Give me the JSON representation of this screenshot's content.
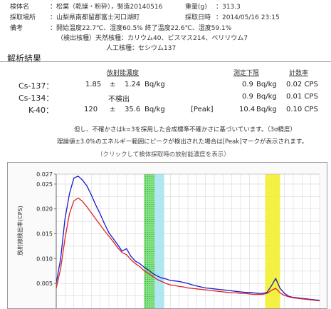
{
  "header": {
    "sample_label": "検体名",
    "sample_value": "：松葉（乾燥・粉砕），製造20140516",
    "weight_label": "重量(g)",
    "weight_value": "：313.3",
    "place_label": "採取場所",
    "place_value": "：山梨県南都留郡富士河口湖町",
    "date_label": "採取日時",
    "date_value": "：2014/05/16 23:15",
    "remarks_label": "備考",
    "remarks_line1": "：開始温度22.7℃、湿度60.5%  終了温度22.6℃、湿度59.1%",
    "remarks_line2": "（検出核種）天然核種：カリウム40、ビスマス214、ベリリウム7",
    "remarks_line3": "人工核種：セシウム137"
  },
  "results": {
    "section_title": "解析結果",
    "col_concentration": "放射能濃度",
    "col_detection_limit": "測定下限",
    "col_count_rate": "計数率",
    "rows": [
      {
        "nuclide": "Cs-137：",
        "value": "1.85",
        "pm": "±",
        "error": "1.24",
        "unit": "Bq/kg",
        "peak": "",
        "limit": "0.9",
        "limit_unit": "Bq/kg",
        "rate": "0.02 CPS"
      },
      {
        "nuclide": "Cs-134：",
        "value": "不検出",
        "pm": "",
        "error": "",
        "unit": "",
        "peak": "",
        "limit": "0.9",
        "limit_unit": "Bq/kg",
        "rate": "0.01 CPS"
      },
      {
        "nuclide": "K-40：",
        "value": "120",
        "pm": "±",
        "error": "35.6",
        "unit": "Bq/kg",
        "peak": "[Peak]",
        "limit": "10.4",
        "limit_unit": "Bq/kg",
        "rate": "0.10 CPS"
      }
    ],
    "note1": "但し、不確かさはk=3を採用した合成標準不確かさに基づいています。（3σ精度）",
    "note2": "理論値±3.0%のエネルギー範囲にピークが検出された場合は[Peak]マークが表示されます。",
    "note3": "（クリックして検体採取時の放射能濃度を表示）"
  },
  "chart_data": {
    "type": "line",
    "title": "",
    "xlabel": "",
    "ylabel": "放射線検出率(CPS)",
    "ylim": [
      0,
      0.027
    ],
    "yticks": [
      "0.027",
      "0.025",
      "0.020",
      "0.015",
      "0.010",
      "0.005"
    ],
    "grid": true,
    "x": [
      0,
      5,
      10,
      15,
      20,
      25,
      30,
      35,
      40,
      45,
      50,
      55,
      60,
      65,
      70,
      75,
      80,
      85,
      90,
      95,
      100,
      105,
      110,
      115,
      120,
      125,
      130,
      135,
      140,
      145,
      150,
      155,
      160,
      165,
      170,
      175,
      180,
      185,
      190,
      195,
      200,
      205,
      210,
      215,
      220,
      225,
      230,
      235,
      240,
      245,
      250,
      255,
      260,
      265,
      270,
      275,
      280,
      285,
      290,
      295,
      300
    ],
    "series": [
      {
        "color": "#1a1acc",
        "values": [
          0.005,
          0.01,
          0.018,
          0.023,
          0.0262,
          0.0266,
          0.0258,
          0.0246,
          0.0228,
          0.0208,
          0.019,
          0.017,
          0.0152,
          0.014,
          0.0128,
          0.0115,
          0.012,
          0.0105,
          0.0095,
          0.009,
          0.0083,
          0.0077,
          0.007,
          0.0065,
          0.0061,
          0.0059,
          0.0056,
          0.0055,
          0.0054,
          0.0052,
          0.005,
          0.0047,
          0.0045,
          0.0043,
          0.0041,
          0.004,
          0.0039,
          0.0038,
          0.0037,
          0.0036,
          0.0035,
          0.0034,
          0.0033,
          0.0032,
          0.0032,
          0.0031,
          0.003,
          0.003,
          0.0032,
          0.0045,
          0.006,
          0.004,
          0.003,
          0.0024,
          0.0022,
          0.0021,
          0.002,
          0.0019,
          0.0018,
          0.0017,
          0.0016
        ]
      },
      {
        "color": "#dd2222",
        "values": [
          0.004,
          0.008,
          0.014,
          0.019,
          0.0216,
          0.0222,
          0.0215,
          0.0204,
          0.0192,
          0.018,
          0.0168,
          0.0156,
          0.0145,
          0.0134,
          0.0122,
          0.0112,
          0.0108,
          0.0098,
          0.009,
          0.0084,
          0.0076,
          0.007,
          0.0064,
          0.0058,
          0.0054,
          0.005,
          0.0047,
          0.0046,
          0.0044,
          0.0043,
          0.0041,
          0.004,
          0.0039,
          0.0038,
          0.0037,
          0.0036,
          0.0035,
          0.0034,
          0.0033,
          0.0032,
          0.0031,
          0.0031,
          0.003,
          0.003,
          0.0029,
          0.0028,
          0.0028,
          0.0028,
          0.003,
          0.0036,
          0.004,
          0.0031,
          0.0026,
          0.0023,
          0.0021,
          0.002,
          0.0019,
          0.0018,
          0.0017,
          0.0016,
          0.0015
        ]
      }
    ],
    "bands": [
      {
        "from": 100,
        "to": 112,
        "color": "#33cc33",
        "pattern": "dotted"
      },
      {
        "from": 112,
        "to": 123,
        "color": "#a8e4f0",
        "pattern": "solid"
      },
      {
        "from": 238,
        "to": 255,
        "color": "#f2f030",
        "pattern": "solid"
      }
    ]
  }
}
